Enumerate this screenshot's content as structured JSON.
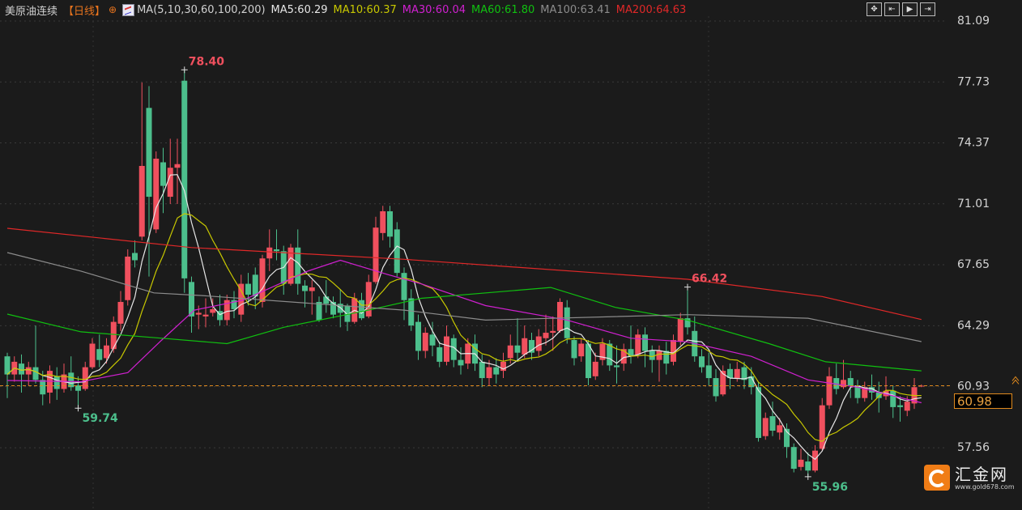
{
  "header": {
    "title": "美原油连续",
    "period": "【日线】",
    "crosshair_icon": "crosshair-icon",
    "ma_icon": "ma-indicator-icon",
    "ma_params": "MA(5,10,30,60,100,200)",
    "ma_values": [
      {
        "label": "MA5:60.29",
        "color": "#e6e6e6"
      },
      {
        "label": "MA10:60.37",
        "color": "#c8c800"
      },
      {
        "label": "MA30:60.04",
        "color": "#d020d0"
      },
      {
        "label": "MA60:61.80",
        "color": "#10c010"
      },
      {
        "label": "MA100:63.41",
        "color": "#8c8c8c"
      },
      {
        "label": "MA200:64.63",
        "color": "#e02828"
      }
    ]
  },
  "toolbar": [
    {
      "icon": "crosshair-move-icon",
      "glyph": "✥"
    },
    {
      "icon": "fit-range-icon",
      "glyph": "⇤"
    },
    {
      "icon": "play-step-icon",
      "glyph": "▶"
    },
    {
      "icon": "jump-latest-icon",
      "glyph": "⇥"
    }
  ],
  "current_price": "60.98",
  "logo": {
    "name": "汇金网",
    "url": "www.gold678.com"
  },
  "colors": {
    "up": "#f0505e",
    "down": "#4cbf8c",
    "background": "#1b1b1b",
    "current_line": "#e08a1e"
  },
  "chart_data": {
    "type": "candlestick",
    "title": "美原油连续",
    "yticks": [
      "81.09",
      "77.73",
      "74.37",
      "71.01",
      "67.65",
      "64.29",
      "60.93",
      "57.56"
    ],
    "ylim": [
      55.0,
      81.09
    ],
    "grid": true,
    "annotations": [
      {
        "label": "78.40",
        "index": 25,
        "value": 78.4,
        "color": "#f0505e"
      },
      {
        "label": "59.74",
        "index": 10,
        "value": 59.74,
        "color": "#4cbf8c"
      },
      {
        "label": "66.42",
        "index": 96,
        "value": 66.42,
        "color": "#f0505e"
      },
      {
        "label": "55.96",
        "index": 113,
        "value": 55.96,
        "color": "#4cbf8c"
      }
    ],
    "candle_fields": [
      "open",
      "close",
      "high",
      "low"
    ],
    "candles": [
      [
        62.6,
        61.6,
        62.8,
        60.3
      ],
      [
        61.6,
        62.3,
        62.6,
        61.2
      ],
      [
        62.2,
        61.6,
        62.7,
        60.6
      ],
      [
        61.6,
        62.0,
        62.3,
        61.0
      ],
      [
        62.0,
        61.3,
        64.3,
        61.1
      ],
      [
        61.3,
        60.5,
        61.8,
        59.9
      ],
      [
        60.6,
        61.8,
        62.1,
        60.0
      ],
      [
        61.5,
        60.8,
        62.0,
        60.2
      ],
      [
        60.8,
        61.6,
        62.2,
        60.6
      ],
      [
        61.7,
        60.9,
        62.6,
        60.7
      ],
      [
        61.0,
        60.7,
        61.5,
        59.74
      ],
      [
        60.8,
        62.0,
        62.3,
        60.7
      ],
      [
        62.0,
        63.3,
        63.6,
        61.9
      ],
      [
        63.0,
        62.4,
        63.8,
        62.0
      ],
      [
        62.5,
        63.2,
        63.6,
        62.2
      ],
      [
        63.0,
        64.5,
        64.8,
        62.8
      ],
      [
        64.4,
        65.6,
        66.2,
        64.0
      ],
      [
        65.7,
        68.1,
        68.5,
        65.4
      ],
      [
        68.3,
        67.9,
        69.0,
        67.5
      ],
      [
        69.2,
        73.1,
        77.7,
        69.0
      ],
      [
        76.3,
        71.4,
        77.5,
        67.0
      ],
      [
        69.6,
        73.5,
        73.9,
        69.4
      ],
      [
        73.3,
        72.0,
        74.1,
        70.5
      ],
      [
        71.4,
        73.0,
        74.6,
        71.0
      ],
      [
        73.0,
        73.2,
        74.6,
        71.0
      ],
      [
        77.8,
        66.9,
        78.4,
        66.1
      ],
      [
        66.7,
        64.8,
        67.0,
        63.9
      ],
      [
        64.9,
        65.0,
        65.4,
        64.1
      ],
      [
        64.8,
        64.9,
        65.8,
        64.2
      ],
      [
        65.0,
        65.2,
        65.8,
        64.8
      ],
      [
        65.1,
        64.6,
        66.0,
        64.3
      ],
      [
        64.6,
        65.7,
        66.0,
        64.3
      ],
      [
        65.7,
        65.2,
        66.2,
        64.7
      ],
      [
        64.9,
        66.6,
        67.1,
        64.5
      ],
      [
        66.6,
        66.0,
        67.2,
        65.4
      ],
      [
        67.1,
        65.9,
        67.5,
        65.2
      ],
      [
        65.6,
        68.0,
        68.2,
        65.3
      ],
      [
        68.0,
        68.6,
        69.6,
        67.3
      ],
      [
        68.5,
        68.4,
        69.6,
        67.9
      ],
      [
        68.4,
        66.6,
        68.7,
        66.0
      ],
      [
        66.6,
        68.6,
        68.8,
        66.5
      ],
      [
        68.6,
        66.6,
        69.6,
        66.0
      ],
      [
        66.5,
        66.2,
        66.8,
        65.3
      ],
      [
        66.2,
        66.4,
        66.8,
        64.9
      ],
      [
        65.6,
        64.6,
        65.9,
        64.5
      ],
      [
        65.9,
        65.5,
        66.8,
        65.0
      ],
      [
        65.6,
        64.9,
        65.9,
        64.7
      ],
      [
        65.5,
        65.0,
        66.3,
        64.2
      ],
      [
        65.4,
        64.5,
        65.5,
        64.0
      ],
      [
        64.5,
        65.8,
        66.1,
        64.4
      ],
      [
        65.7,
        64.7,
        66.1,
        64.6
      ],
      [
        64.8,
        66.7,
        67.1,
        64.7
      ],
      [
        66.7,
        69.7,
        70.3,
        66.6
      ],
      [
        69.4,
        70.6,
        70.9,
        69.0
      ],
      [
        70.6,
        69.2,
        70.9,
        68.6
      ],
      [
        69.6,
        67.2,
        70.0,
        67.0
      ],
      [
        67.2,
        65.7,
        67.5,
        64.6
      ],
      [
        65.8,
        64.3,
        66.3,
        64.0
      ],
      [
        64.5,
        62.9,
        64.9,
        62.4
      ],
      [
        62.9,
        63.9,
        64.2,
        62.5
      ],
      [
        63.8,
        63.2,
        64.5,
        62.6
      ],
      [
        63.1,
        62.3,
        63.4,
        62.0
      ],
      [
        62.3,
        63.7,
        64.3,
        62.1
      ],
      [
        63.6,
        62.4,
        63.8,
        62.0
      ],
      [
        62.4,
        62.1,
        63.1,
        61.6
      ],
      [
        62.2,
        63.3,
        63.6,
        61.9
      ],
      [
        63.3,
        62.2,
        63.8,
        61.8
      ],
      [
        62.3,
        61.4,
        62.7,
        60.9
      ],
      [
        61.4,
        62.0,
        62.4,
        61.0
      ],
      [
        62.0,
        61.6,
        62.5,
        61.1
      ],
      [
        61.8,
        62.3,
        62.8,
        61.4
      ],
      [
        62.5,
        63.2,
        63.8,
        62.2
      ],
      [
        63.2,
        62.8,
        64.7,
        62.3
      ],
      [
        62.7,
        63.6,
        64.3,
        62.5
      ],
      [
        63.5,
        62.8,
        63.9,
        62.4
      ],
      [
        62.9,
        63.7,
        64.1,
        62.6
      ],
      [
        63.6,
        63.9,
        64.9,
        63.2
      ],
      [
        63.9,
        64.0,
        64.8,
        62.9
      ],
      [
        64.0,
        65.6,
        65.8,
        63.9
      ],
      [
        65.3,
        63.6,
        65.7,
        63.3
      ],
      [
        63.5,
        62.5,
        63.7,
        62.1
      ],
      [
        62.6,
        63.3,
        63.6,
        62.3
      ],
      [
        63.3,
        61.4,
        63.5,
        61.0
      ],
      [
        61.5,
        62.3,
        62.8,
        61.3
      ],
      [
        62.4,
        63.3,
        63.6,
        62.1
      ],
      [
        63.3,
        62.1,
        63.5,
        61.8
      ],
      [
        62.1,
        62.0,
        63.2,
        61.1
      ],
      [
        62.2,
        63.0,
        63.3,
        61.8
      ],
      [
        63.0,
        62.6,
        64.3,
        62.2
      ],
      [
        62.7,
        63.8,
        64.1,
        62.5
      ],
      [
        63.8,
        62.9,
        64.2,
        62.0
      ],
      [
        62.9,
        62.4,
        63.2,
        61.7
      ],
      [
        62.4,
        62.9,
        63.2,
        61.2
      ],
      [
        62.9,
        62.2,
        63.4,
        61.6
      ],
      [
        62.3,
        63.5,
        63.8,
        62.1
      ],
      [
        63.4,
        64.7,
        65.0,
        63.2
      ],
      [
        64.7,
        64.2,
        66.42,
        63.8
      ],
      [
        64.0,
        62.6,
        64.8,
        62.3
      ],
      [
        62.6,
        62.0,
        63.0,
        61.7
      ],
      [
        62.1,
        61.4,
        62.8,
        61.0
      ],
      [
        61.4,
        60.4,
        61.9,
        60.1
      ],
      [
        60.5,
        61.8,
        62.1,
        60.4
      ],
      [
        61.9,
        61.4,
        62.2,
        60.8
      ],
      [
        61.4,
        61.9,
        62.3,
        61.2
      ],
      [
        62.0,
        61.3,
        62.3,
        60.8
      ],
      [
        61.5,
        60.9,
        62.0,
        60.5
      ],
      [
        60.9,
        58.1,
        61.2,
        57.9
      ],
      [
        58.2,
        59.2,
        59.5,
        58.0
      ],
      [
        59.3,
        58.5,
        60.1,
        58.2
      ],
      [
        58.4,
        58.8,
        59.2,
        58.0
      ],
      [
        58.6,
        57.6,
        58.9,
        57.0
      ],
      [
        57.6,
        56.4,
        57.8,
        56.2
      ],
      [
        56.5,
        56.9,
        57.5,
        56.3
      ],
      [
        56.8,
        56.3,
        57.3,
        55.96
      ],
      [
        56.3,
        57.4,
        57.7,
        56.2
      ],
      [
        57.5,
        59.9,
        60.3,
        57.4
      ],
      [
        59.9,
        61.5,
        62.0,
        59.7
      ],
      [
        61.4,
        60.8,
        62.2,
        60.5
      ],
      [
        60.9,
        61.3,
        62.4,
        60.8
      ],
      [
        61.4,
        61.0,
        61.8,
        60.3
      ],
      [
        61.0,
        60.3,
        61.3,
        60.0
      ],
      [
        60.3,
        60.9,
        61.2,
        60.1
      ],
      [
        60.9,
        60.6,
        61.6,
        60.2
      ],
      [
        60.6,
        60.3,
        61.2,
        59.5
      ],
      [
        60.4,
        60.7,
        61.5,
        60.2
      ],
      [
        60.7,
        59.8,
        61.0,
        59.2
      ],
      [
        59.9,
        59.8,
        60.4,
        59.0
      ],
      [
        59.6,
        60.1,
        60.4,
        59.3
      ],
      [
        60.0,
        60.9,
        61.4,
        59.7
      ],
      [
        60.98,
        60.98,
        61.05,
        60.9
      ]
    ],
    "moving_averages": [
      {
        "name": "MA5",
        "period": 5,
        "color": "#e6e6e6"
      },
      {
        "name": "MA10",
        "period": 10,
        "color": "#c8c800"
      },
      {
        "name": "MA30",
        "color": "#d020d0",
        "points": [
          [
            0,
            61.27
          ],
          [
            10.4,
            61.2
          ],
          [
            17,
            61.7
          ],
          [
            21.8,
            63.5
          ],
          [
            26.4,
            65.15
          ],
          [
            33.3,
            65.7
          ],
          [
            42.4,
            67.3
          ],
          [
            47,
            67.9
          ],
          [
            53.8,
            67.1
          ],
          [
            58.4,
            66.6
          ],
          [
            67.5,
            65.4
          ],
          [
            79,
            64.6
          ],
          [
            88,
            63.6
          ],
          [
            96,
            63.4
          ],
          [
            105,
            62.6
          ],
          [
            113,
            61.3
          ],
          [
            120,
            60.9
          ],
          [
            129,
            60.04
          ]
        ]
      },
      {
        "name": "MA60",
        "color": "#10c010",
        "points": [
          [
            0,
            64.93
          ],
          [
            10.4,
            63.95
          ],
          [
            21.8,
            63.6
          ],
          [
            31,
            63.3
          ],
          [
            39,
            64.2
          ],
          [
            50.4,
            65.1
          ],
          [
            58.4,
            65.8
          ],
          [
            76.7,
            66.4
          ],
          [
            85.8,
            65.3
          ],
          [
            96,
            64.6
          ],
          [
            107.5,
            63.3
          ],
          [
            115.5,
            62.3
          ],
          [
            129,
            61.8
          ]
        ]
      },
      {
        "name": "MA100",
        "color": "#8c8c8c",
        "points": [
          [
            0,
            68.32
          ],
          [
            10.4,
            67.3
          ],
          [
            20.7,
            66.1
          ],
          [
            27.5,
            65.95
          ],
          [
            56,
            65.15
          ],
          [
            67.5,
            64.6
          ],
          [
            96,
            64.9
          ],
          [
            113,
            64.7
          ],
          [
            129,
            63.41
          ]
        ]
      },
      {
        "name": "MA200",
        "color": "#e02828",
        "points": [
          [
            0,
            69.66
          ],
          [
            26,
            68.6
          ],
          [
            56,
            67.95
          ],
          [
            96,
            66.85
          ],
          [
            115,
            65.9
          ],
          [
            129,
            64.63
          ]
        ]
      }
    ]
  }
}
